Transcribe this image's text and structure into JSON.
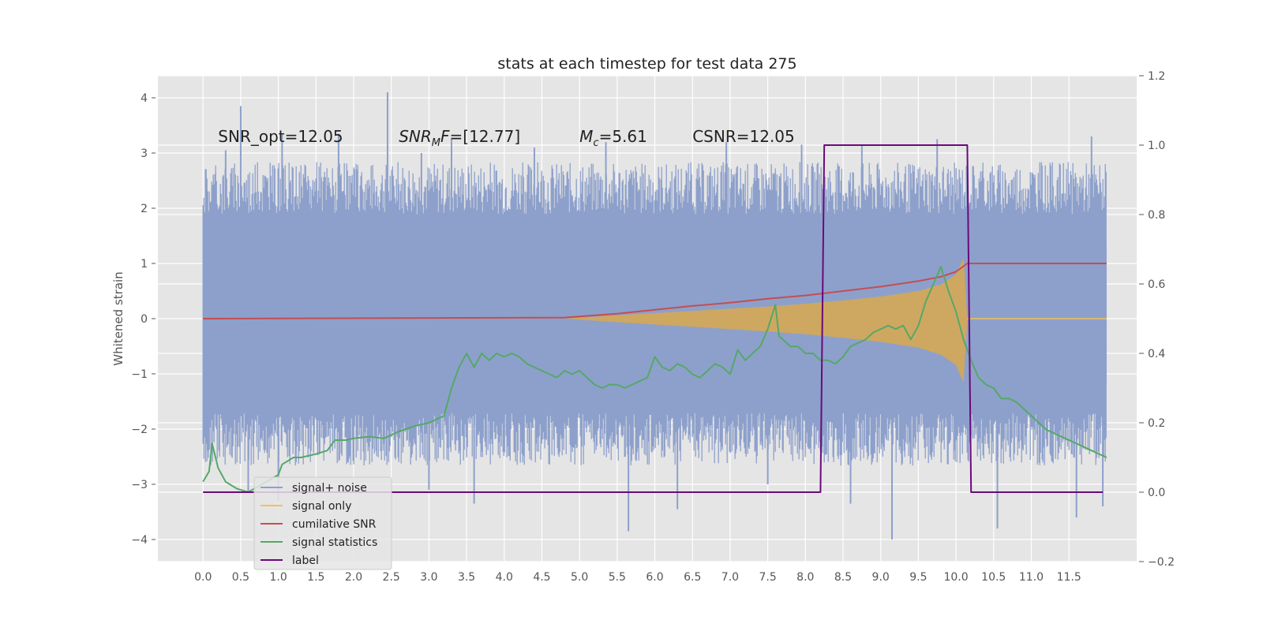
{
  "chart_data": {
    "type": "line",
    "title": "stats at each timestep for test data 275",
    "xlabel": "",
    "ylabel": "Whitened strain",
    "y2label": "",
    "xlim": [
      -0.6,
      12.4
    ],
    "ylim": [
      -4.4,
      4.4
    ],
    "y2lim": [
      -0.2,
      1.2
    ],
    "grid": true,
    "x_ticks": [
      "0.0",
      "0.5",
      "1.0",
      "1.5",
      "2.0",
      "2.5",
      "3.0",
      "3.5",
      "4.0",
      "4.5",
      "5.0",
      "5.5",
      "6.0",
      "6.5",
      "7.0",
      "7.5",
      "8.0",
      "8.5",
      "9.0",
      "9.5",
      "10.0",
      "10.5",
      "11.0",
      "11.5"
    ],
    "y_ticks": [
      "4",
      "3",
      "2",
      "1",
      "0",
      "−1",
      "−2",
      "−3",
      "−4"
    ],
    "y2_ticks": [
      "1.2",
      "1.0",
      "0.8",
      "0.6",
      "0.4",
      "0.2",
      "0.0",
      "−0.2"
    ],
    "annotations": [
      {
        "text": "SNR_opt=12.05",
        "x": 0.2,
        "y": 3.3
      },
      {
        "text": "SNR_MF=[12.77]",
        "display_main": "SNR",
        "display_sub": "M",
        "display_tail": "F=[12.77]",
        "x": 2.6,
        "y": 3.3
      },
      {
        "text": "M_c=5.61",
        "display_main": "M",
        "display_sub": "c",
        "display_tail": "=5.61",
        "x": 5.0,
        "y": 3.3
      },
      {
        "text": "CSNR=12.05",
        "x": 6.5,
        "y": 3.3
      }
    ],
    "legend": {
      "position": "lower left",
      "entries": [
        {
          "label": "signal+ noise",
          "color": "#8da0cb"
        },
        {
          "label": "signal only",
          "color": "#f0c15a"
        },
        {
          "label": "cumilative SNR",
          "color": "#c44e52"
        },
        {
          "label": "signal statistics",
          "color": "#55a868"
        },
        {
          "label": "label",
          "color": "#6a0a7a"
        }
      ]
    },
    "series": [
      {
        "name": "signal+ noise",
        "color": "#8da0cb",
        "axis": "left",
        "x_range": [
          0.0,
          12.0
        ],
        "band_upper": 2.1,
        "band_lower": -1.9,
        "spikes": [
          [
            0.5,
            3.85
          ],
          [
            0.3,
            3.05
          ],
          [
            1.05,
            3.35
          ],
          [
            1.8,
            3.35
          ],
          [
            2.45,
            4.1
          ],
          [
            2.9,
            3.0
          ],
          [
            3.3,
            3.25
          ],
          [
            4.4,
            3.1
          ],
          [
            5.35,
            3.2
          ],
          [
            6.95,
            3.2
          ],
          [
            7.95,
            3.15
          ],
          [
            8.75,
            3.15
          ],
          [
            9.75,
            3.25
          ],
          [
            11.8,
            3.3
          ],
          [
            0.6,
            -3.15
          ],
          [
            1.0,
            -3.3
          ],
          [
            3.6,
            -3.35
          ],
          [
            5.65,
            -3.85
          ],
          [
            6.3,
            -3.45
          ],
          [
            9.15,
            -4.0
          ],
          [
            10.55,
            -3.8
          ],
          [
            11.6,
            -3.6
          ],
          [
            11.95,
            -3.4
          ],
          [
            8.6,
            -3.35
          ],
          [
            3.0,
            -3.1
          ],
          [
            7.5,
            -3.0
          ]
        ]
      },
      {
        "name": "signal only",
        "color": "#f0c15a",
        "axis": "left",
        "x": [
          4.8,
          5.5,
          6.0,
          6.5,
          7.0,
          7.5,
          8.0,
          8.5,
          9.0,
          9.5,
          9.8,
          10.0,
          10.1,
          10.15
        ],
        "amplitude": [
          0.0,
          0.06,
          0.1,
          0.14,
          0.18,
          0.22,
          0.27,
          0.33,
          0.4,
          0.5,
          0.62,
          0.8,
          1.1,
          0.0
        ]
      },
      {
        "name": "cumilative SNR",
        "color": "#c44e52",
        "axis": "left",
        "x": [
          0.0,
          4.8,
          5.5,
          6.0,
          6.5,
          7.0,
          7.5,
          8.0,
          8.5,
          9.0,
          9.5,
          9.8,
          10.0,
          10.15,
          12.0
        ],
        "y": [
          0.0,
          0.02,
          0.09,
          0.16,
          0.23,
          0.29,
          0.36,
          0.42,
          0.5,
          0.58,
          0.68,
          0.76,
          0.85,
          1.0,
          1.0
        ]
      },
      {
        "name": "signal statistics",
        "color": "#55a868",
        "axis": "right",
        "x": [
          0.0,
          0.08,
          0.12,
          0.2,
          0.3,
          0.45,
          0.6,
          1.0,
          1.05,
          1.2,
          1.3,
          1.5,
          1.65,
          1.75,
          1.9,
          2.0,
          2.2,
          2.4,
          2.6,
          2.8,
          3.0,
          3.1,
          3.2,
          3.3,
          3.4,
          3.5,
          3.6,
          3.7,
          3.8,
          3.9,
          4.0,
          4.1,
          4.2,
          4.3,
          4.4,
          4.5,
          4.6,
          4.7,
          4.8,
          4.9,
          5.0,
          5.1,
          5.2,
          5.3,
          5.4,
          5.5,
          5.6,
          5.7,
          5.8,
          5.9,
          6.0,
          6.1,
          6.2,
          6.3,
          6.4,
          6.5,
          6.6,
          6.7,
          6.8,
          6.9,
          7.0,
          7.1,
          7.2,
          7.3,
          7.4,
          7.5,
          7.6,
          7.65,
          7.7,
          7.8,
          7.9,
          8.0,
          8.1,
          8.2,
          8.3,
          8.4,
          8.5,
          8.6,
          8.7,
          8.8,
          8.9,
          9.0,
          9.1,
          9.2,
          9.3,
          9.4,
          9.5,
          9.6,
          9.7,
          9.8,
          9.9,
          10.0,
          10.1,
          10.2,
          10.3,
          10.4,
          10.5,
          10.6,
          10.7,
          10.8,
          10.9,
          11.0,
          11.1,
          11.2,
          11.3,
          11.4,
          11.5,
          11.6,
          11.7,
          11.8,
          11.9,
          12.0
        ],
        "y": [
          0.03,
          0.06,
          0.14,
          0.07,
          0.03,
          0.01,
          0.0,
          0.05,
          0.08,
          0.1,
          0.1,
          0.11,
          0.12,
          0.15,
          0.15,
          0.155,
          0.16,
          0.155,
          0.175,
          0.19,
          0.2,
          0.21,
          0.22,
          0.3,
          0.36,
          0.4,
          0.36,
          0.4,
          0.38,
          0.4,
          0.39,
          0.4,
          0.39,
          0.37,
          0.36,
          0.35,
          0.34,
          0.33,
          0.35,
          0.34,
          0.35,
          0.33,
          0.31,
          0.3,
          0.31,
          0.31,
          0.3,
          0.31,
          0.32,
          0.33,
          0.39,
          0.36,
          0.35,
          0.37,
          0.36,
          0.34,
          0.33,
          0.35,
          0.37,
          0.36,
          0.34,
          0.41,
          0.38,
          0.4,
          0.42,
          0.47,
          0.54,
          0.45,
          0.44,
          0.42,
          0.42,
          0.4,
          0.4,
          0.38,
          0.38,
          0.37,
          0.39,
          0.42,
          0.43,
          0.44,
          0.46,
          0.47,
          0.48,
          0.47,
          0.48,
          0.44,
          0.48,
          0.55,
          0.6,
          0.65,
          0.58,
          0.52,
          0.44,
          0.38,
          0.33,
          0.31,
          0.3,
          0.27,
          0.27,
          0.26,
          0.24,
          0.22,
          0.2,
          0.18,
          0.17,
          0.16,
          0.15,
          0.14,
          0.13,
          0.12,
          0.11,
          0.1
        ]
      },
      {
        "name": "label",
        "color": "#6a0a7a",
        "axis": "right",
        "x": [
          0.0,
          8.2,
          8.25,
          10.15,
          10.2,
          11.95
        ],
        "y": [
          0.0,
          0.0,
          1.0,
          1.0,
          0.0,
          0.0
        ]
      }
    ]
  }
}
